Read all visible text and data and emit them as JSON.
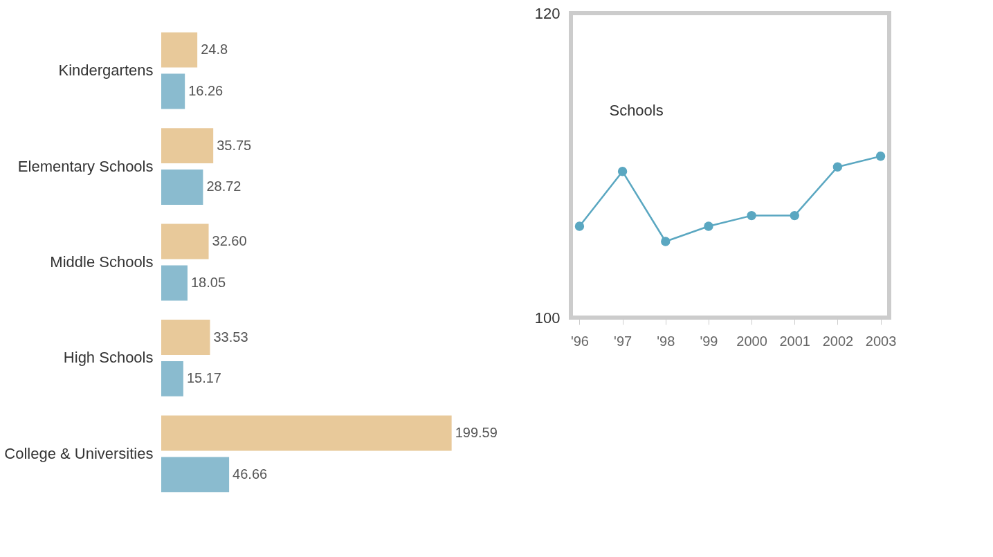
{
  "chart_data": [
    {
      "type": "bar",
      "orientation": "horizontal",
      "categories": [
        "Kindergartens",
        "Elementary Schools",
        "Middle Schools",
        "High Schools",
        "College & Universities"
      ],
      "series": [
        {
          "color": "#e8c99a",
          "values": [
            24.8,
            35.75,
            32.6,
            33.53,
            199.59
          ],
          "value_labels": [
            "24.8",
            "35.75",
            "32.60",
            "33.53",
            "199.59"
          ]
        },
        {
          "color": "#8abbcf",
          "values": [
            16.26,
            28.72,
            18.05,
            15.17,
            46.66
          ],
          "value_labels": [
            "16.26",
            "28.72",
            "18.05",
            "15.17",
            "46.66"
          ]
        }
      ]
    },
    {
      "type": "line",
      "categories": [
        "'96",
        "'97",
        "'98",
        "'99",
        "2000",
        "2001",
        "2002",
        "2003"
      ],
      "series": [
        {
          "name": "Schools",
          "color": "#5aa7c1",
          "values": [
            106,
            109.6,
            105,
            106,
            106.7,
            106.7,
            109.9,
            110.6
          ]
        }
      ],
      "ylim": [
        100,
        120
      ],
      "yticks": [
        100,
        120
      ],
      "marker": "circle",
      "grid": false
    }
  ]
}
